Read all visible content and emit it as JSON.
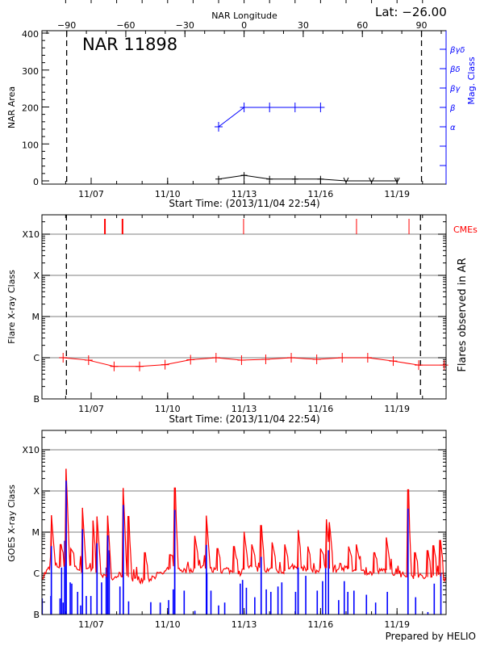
{
  "header": {
    "nar_label": "NAR 11898",
    "lat_label": "Lat: −26.00",
    "longitude_axis_title": "NAR Longitude",
    "footer": "Prepared by HELIO"
  },
  "colors": {
    "area": "#000000",
    "mag_class": "#0000ff",
    "flares": "#ff0000",
    "cme": "#ff0000",
    "goes_long": "#ff0000",
    "goes_short": "#0000ff",
    "grid": "#999999"
  },
  "chart_data": [
    {
      "type": "line",
      "title": "NAR 11898",
      "xlabel": "Start Time: (2013/11/04 22:54)",
      "x_units": "days since 2013/11/04 00:00",
      "xlim": [
        1.07,
        16.92
      ],
      "x_tick_labels": [
        {
          "day": 3,
          "label": "11/07"
        },
        {
          "day": 6,
          "label": "11/10"
        },
        {
          "day": 9,
          "label": "11/13"
        },
        {
          "day": 12,
          "label": "11/16"
        },
        {
          "day": 15,
          "label": "11/19"
        }
      ],
      "top_axis": {
        "title": "NAR Longitude",
        "ticks": [
          -90,
          -60,
          -30,
          0,
          30,
          60,
          90
        ],
        "zero_day": 9,
        "deg_per_day": 12.93
      },
      "limb_longitudes": [
        -90,
        90
      ],
      "ylabel": "NAR Area",
      "ylim": [
        -9,
        410
      ],
      "y_ticks": [
        0,
        100,
        200,
        300,
        400
      ],
      "series": [
        {
          "name": "NAR Area",
          "x": [
            8,
            9,
            10,
            11,
            12,
            13,
            14,
            15
          ],
          "values": [
            5,
            15,
            5,
            5,
            5,
            0,
            0,
            0
          ],
          "marker": [
            "plus",
            "plus",
            "plus",
            "plus",
            "plus",
            "down",
            "down",
            "down"
          ]
        },
        {
          "name": "Mag. Class",
          "axis": "right",
          "x": [
            8,
            9,
            10,
            11,
            12
          ],
          "values": [
            "α",
            "β",
            "β",
            "β",
            "β"
          ]
        }
      ],
      "right_axis": {
        "title": "Mag. Class",
        "classes": [
          "α",
          "β",
          "βγ",
          "βδ",
          "βγδ"
        ]
      }
    },
    {
      "type": "line",
      "xlabel": "Start Time: (2013/11/04 22:54)",
      "xlim": [
        1.07,
        16.92
      ],
      "ylabel": "Flare X-ray Class",
      "right_label": "Flares observed in AR",
      "yscale": "log",
      "ylim_log10": [
        -7.06,
        -2.53
      ],
      "y_ticks": [
        {
          "log10": -7,
          "label": "B"
        },
        {
          "log10": -6,
          "label": "C"
        },
        {
          "log10": -5,
          "label": "M"
        },
        {
          "log10": -4,
          "label": "X"
        },
        {
          "log10": -3,
          "label": "X10"
        }
      ],
      "grid": true,
      "limb_days": [
        2.03,
        15.92
      ],
      "flares": {
        "x": [
          1.9,
          2.9,
          3.9,
          4.9,
          5.9,
          6.9,
          7.9,
          8.9,
          9.85,
          10.85,
          11.85,
          12.85,
          13.85,
          14.85,
          15.85,
          16.85
        ],
        "log10_flux": [
          -6.0,
          -6.06,
          -6.21,
          -6.21,
          -6.17,
          -6.05,
          -6.0,
          -6.06,
          -6.04,
          -6.0,
          -6.04,
          -6.0,
          -6.0,
          -6.08,
          -6.18,
          -6.18
        ]
      },
      "cmes": {
        "label": "CMEs",
        "days": [
          3.54,
          4.23,
          8.98,
          13.41,
          15.47
        ],
        "width": [
          2,
          2,
          1,
          1,
          1
        ]
      }
    },
    {
      "type": "line",
      "xlim": [
        1.07,
        16.92
      ],
      "ylabel": "GOES X-ray Class",
      "yscale": "log",
      "ylim_log10": [
        -7.0,
        -2.53
      ],
      "y_ticks": [
        {
          "log10": -7,
          "label": "B"
        },
        {
          "log10": -6,
          "label": "C"
        },
        {
          "log10": -5,
          "label": "M"
        },
        {
          "log10": -4,
          "label": "X"
        },
        {
          "log10": -3,
          "label": "X10"
        }
      ],
      "grid": true,
      "long_channel": {
        "baseline_start": 1.07,
        "baseline_step": 0.25,
        "baseline_log10": [
          -6.1,
          -5.9,
          -5.8,
          -5.85,
          -5.8,
          -5.82,
          -5.92,
          -5.95,
          -5.88,
          -5.95,
          -6.1,
          -6.15,
          -6.05,
          -6.02,
          -6.15,
          -6.18,
          -6.17,
          -6.14,
          -6.05,
          -6.0,
          -5.9,
          -5.85,
          -5.92,
          -5.95,
          -5.88,
          -5.82,
          -5.9,
          -5.93,
          -5.95,
          -5.9,
          -5.98,
          -6.0,
          -5.88,
          -5.85,
          -5.9,
          -5.95,
          -5.88,
          -5.92,
          -5.95,
          -5.9,
          -5.85,
          -5.88,
          -5.93,
          -5.95,
          -5.85,
          -5.88,
          -5.92,
          -5.9,
          -5.88,
          -5.92,
          -5.95,
          -5.98,
          -6.0,
          -5.95,
          -5.92,
          -5.98,
          -6.02,
          -6.05,
          -6.08,
          -6.05,
          -6.1,
          -6.08,
          -6.02,
          -6.12
        ],
        "peaks": [
          [
            1.44,
            -4.59
          ],
          [
            2.02,
            -3.46
          ],
          [
            2.66,
            -4.41
          ],
          [
            3.07,
            -4.72
          ],
          [
            3.23,
            -4.62
          ],
          [
            3.65,
            -4.6
          ],
          [
            4.26,
            -3.93
          ],
          [
            4.46,
            -4.62
          ],
          [
            6.28,
            -3.93
          ],
          [
            7.07,
            -5.09
          ],
          [
            7.52,
            -4.6
          ],
          [
            9.0,
            -4.99
          ],
          [
            9.67,
            -4.84
          ],
          [
            11.12,
            -4.95
          ],
          [
            12.23,
            -4.69
          ],
          [
            12.35,
            -4.76
          ],
          [
            14.58,
            -5.13
          ],
          [
            15.43,
            -3.97
          ],
          [
            16.43,
            -5.33
          ],
          [
            16.7,
            -5.2
          ],
          [
            1.8,
            -5.3
          ],
          [
            2.2,
            -5.4
          ],
          [
            5.1,
            -5.5
          ],
          [
            6.1,
            -5.55
          ],
          [
            7.95,
            -5.4
          ],
          [
            8.6,
            -5.35
          ],
          [
            9.3,
            -5.3
          ],
          [
            10.1,
            -5.25
          ],
          [
            10.6,
            -5.3
          ],
          [
            11.5,
            -5.35
          ],
          [
            12.0,
            -5.4
          ],
          [
            13.1,
            -5.35
          ],
          [
            13.4,
            -5.3
          ],
          [
            14.1,
            -5.5
          ],
          [
            15.7,
            -5.5
          ],
          [
            16.2,
            -5.45
          ]
        ]
      },
      "short_channel": {
        "spikes": [
          [
            1.44,
            -5.34
          ],
          [
            2.02,
            -3.75
          ],
          [
            2.66,
            -4.93
          ],
          [
            3.23,
            -5.27
          ],
          [
            3.65,
            -5.08
          ],
          [
            4.26,
            -4.34
          ],
          [
            6.28,
            -4.46
          ],
          [
            7.52,
            -5.31
          ],
          [
            9.67,
            -5.6
          ],
          [
            11.12,
            -5.86
          ],
          [
            15.43,
            -4.43
          ],
          [
            1.08,
            -6.61
          ],
          [
            1.42,
            -6.55
          ],
          [
            1.78,
            -6.61
          ],
          [
            1.84,
            -5.86
          ],
          [
            1.9,
            -6.71
          ],
          [
            1.96,
            -5.21
          ],
          [
            2.18,
            -6.22
          ],
          [
            2.24,
            -6.25
          ],
          [
            2.47,
            -6.45
          ],
          [
            2.59,
            -6.78
          ],
          [
            2.81,
            -6.55
          ],
          [
            2.99,
            -6.55
          ],
          [
            3.41,
            -6.22
          ],
          [
            3.59,
            -5.86
          ],
          [
            3.71,
            -5.44
          ],
          [
            4.13,
            -6.32
          ],
          [
            4.47,
            -6.68
          ],
          [
            5.34,
            -6.7
          ],
          [
            5.71,
            -6.71
          ],
          [
            6.04,
            -6.65
          ],
          [
            6.22,
            -6.39
          ],
          [
            6.65,
            -6.42
          ],
          [
            7.07,
            -6.91
          ],
          [
            7.54,
            -5.99
          ],
          [
            7.7,
            -6.42
          ],
          [
            8.0,
            -6.78
          ],
          [
            8.24,
            -6.71
          ],
          [
            8.85,
            -6.25
          ],
          [
            8.94,
            -6.16
          ],
          [
            9.09,
            -6.35
          ],
          [
            9.42,
            -6.58
          ],
          [
            9.87,
            -6.39
          ],
          [
            10.05,
            -6.45
          ],
          [
            10.33,
            -6.32
          ],
          [
            10.48,
            -6.22
          ],
          [
            11.02,
            -6.45
          ],
          [
            11.42,
            -6.06
          ],
          [
            11.87,
            -6.42
          ],
          [
            12.08,
            -6.19
          ],
          [
            12.2,
            -5.54
          ],
          [
            12.31,
            -5.44
          ],
          [
            12.71,
            -6.65
          ],
          [
            12.93,
            -6.19
          ],
          [
            13.07,
            -6.45
          ],
          [
            13.31,
            -6.42
          ],
          [
            13.8,
            -6.52
          ],
          [
            14.16,
            -6.71
          ],
          [
            14.62,
            -6.45
          ],
          [
            15.73,
            -6.58
          ],
          [
            16.21,
            -6.94
          ],
          [
            16.46,
            -6.25
          ],
          [
            16.72,
            -5.99
          ]
        ]
      }
    }
  ]
}
